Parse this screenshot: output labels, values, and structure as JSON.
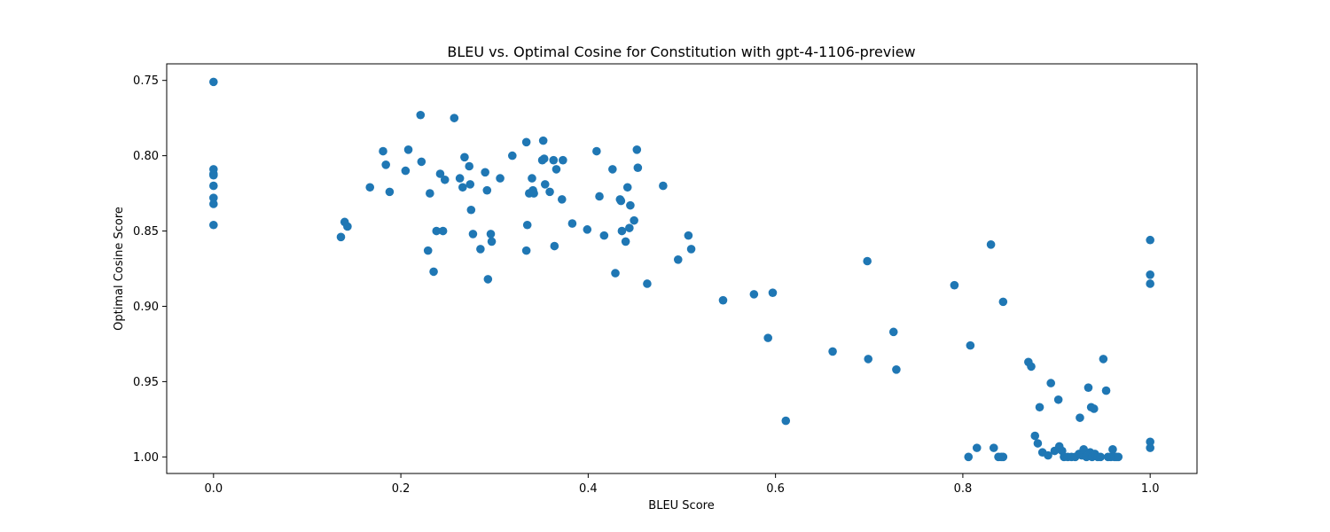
{
  "chart_data": {
    "type": "scatter",
    "title": "BLEU vs. Optimal Cosine for Constitution with gpt-4-1106-preview",
    "xlabel": "BLEU Score",
    "ylabel": "Optimal Cosine Score",
    "xlim": [
      -0.05,
      1.05
    ],
    "ylim": [
      1.011,
      0.739
    ],
    "y_inverted": true,
    "grid": false,
    "marker_color": "#1f77b4",
    "xticks": [
      0.0,
      0.2,
      0.4,
      0.6,
      0.8,
      1.0
    ],
    "xtick_labels": [
      "0.0",
      "0.2",
      "0.4",
      "0.6",
      "0.8",
      "1.0"
    ],
    "yticks": [
      0.75,
      0.8,
      0.85,
      0.9,
      0.95,
      1.0
    ],
    "ytick_labels": [
      "0.75",
      "0.80",
      "0.85",
      "0.90",
      "0.95",
      "1.00"
    ],
    "series": [
      {
        "points": [
          [
            0.0,
            0.751
          ],
          [
            0.0,
            0.809
          ],
          [
            0.0,
            0.812
          ],
          [
            0.0,
            0.813
          ],
          [
            0.0,
            0.82
          ],
          [
            0.0,
            0.828
          ],
          [
            0.0,
            0.832
          ],
          [
            0.0,
            0.846
          ],
          [
            0.136,
            0.854
          ],
          [
            0.14,
            0.844
          ],
          [
            0.143,
            0.847
          ],
          [
            0.167,
            0.821
          ],
          [
            0.181,
            0.797
          ],
          [
            0.184,
            0.806
          ],
          [
            0.188,
            0.824
          ],
          [
            0.205,
            0.81
          ],
          [
            0.208,
            0.796
          ],
          [
            0.221,
            0.773
          ],
          [
            0.222,
            0.804
          ],
          [
            0.229,
            0.863
          ],
          [
            0.231,
            0.825
          ],
          [
            0.235,
            0.877
          ],
          [
            0.238,
            0.85
          ],
          [
            0.242,
            0.812
          ],
          [
            0.245,
            0.85
          ],
          [
            0.247,
            0.816
          ],
          [
            0.257,
            0.775
          ],
          [
            0.263,
            0.815
          ],
          [
            0.266,
            0.821
          ],
          [
            0.268,
            0.801
          ],
          [
            0.273,
            0.807
          ],
          [
            0.274,
            0.819
          ],
          [
            0.275,
            0.836
          ],
          [
            0.277,
            0.852
          ],
          [
            0.285,
            0.862
          ],
          [
            0.29,
            0.811
          ],
          [
            0.292,
            0.823
          ],
          [
            0.293,
            0.882
          ],
          [
            0.296,
            0.852
          ],
          [
            0.297,
            0.857
          ],
          [
            0.306,
            0.815
          ],
          [
            0.319,
            0.8
          ],
          [
            0.334,
            0.791
          ],
          [
            0.334,
            0.863
          ],
          [
            0.335,
            0.846
          ],
          [
            0.337,
            0.825
          ],
          [
            0.34,
            0.815
          ],
          [
            0.341,
            0.823
          ],
          [
            0.342,
            0.825
          ],
          [
            0.351,
            0.803
          ],
          [
            0.352,
            0.79
          ],
          [
            0.353,
            0.802
          ],
          [
            0.354,
            0.819
          ],
          [
            0.359,
            0.824
          ],
          [
            0.363,
            0.803
          ],
          [
            0.364,
            0.86
          ],
          [
            0.366,
            0.809
          ],
          [
            0.372,
            0.829
          ],
          [
            0.373,
            0.803
          ],
          [
            0.383,
            0.845
          ],
          [
            0.399,
            0.849
          ],
          [
            0.409,
            0.797
          ],
          [
            0.412,
            0.827
          ],
          [
            0.417,
            0.853
          ],
          [
            0.426,
            0.809
          ],
          [
            0.429,
            0.878
          ],
          [
            0.434,
            0.829
          ],
          [
            0.435,
            0.83
          ],
          [
            0.436,
            0.85
          ],
          [
            0.44,
            0.857
          ],
          [
            0.442,
            0.821
          ],
          [
            0.444,
            0.848
          ],
          [
            0.445,
            0.833
          ],
          [
            0.449,
            0.843
          ],
          [
            0.452,
            0.796
          ],
          [
            0.453,
            0.808
          ],
          [
            0.463,
            0.885
          ],
          [
            0.48,
            0.82
          ],
          [
            0.496,
            0.869
          ],
          [
            0.507,
            0.853
          ],
          [
            0.51,
            0.862
          ],
          [
            0.544,
            0.896
          ],
          [
            0.577,
            0.892
          ],
          [
            0.592,
            0.921
          ],
          [
            0.597,
            0.891
          ],
          [
            0.611,
            0.976
          ],
          [
            0.661,
            0.93
          ],
          [
            0.698,
            0.87
          ],
          [
            0.699,
            0.935
          ],
          [
            0.726,
            0.917
          ],
          [
            0.729,
            0.942
          ],
          [
            0.791,
            0.886
          ],
          [
            0.806,
            1.0
          ],
          [
            0.808,
            0.926
          ],
          [
            0.815,
            0.994
          ],
          [
            0.83,
            0.859
          ],
          [
            0.833,
            0.994
          ],
          [
            0.838,
            1.0
          ],
          [
            0.841,
            1.0
          ],
          [
            0.843,
            0.897
          ],
          [
            0.843,
            1.0
          ],
          [
            0.87,
            0.937
          ],
          [
            0.873,
            0.94
          ],
          [
            0.877,
            0.986
          ],
          [
            0.88,
            0.991
          ],
          [
            0.882,
            0.967
          ],
          [
            0.885,
            0.997
          ],
          [
            0.891,
            0.999
          ],
          [
            0.894,
            0.951
          ],
          [
            0.898,
            0.996
          ],
          [
            0.902,
            0.962
          ],
          [
            0.903,
            0.993
          ],
          [
            0.906,
            0.996
          ],
          [
            0.908,
            1.0
          ],
          [
            0.912,
            1.0
          ],
          [
            0.916,
            1.0
          ],
          [
            0.92,
            1.0
          ],
          [
            0.924,
            0.998
          ],
          [
            0.925,
            0.974
          ],
          [
            0.927,
            0.999
          ],
          [
            0.929,
            0.995
          ],
          [
            0.932,
            1.0
          ],
          [
            0.934,
            0.954
          ],
          [
            0.936,
            0.997
          ],
          [
            0.937,
            0.967
          ],
          [
            0.938,
            1.0
          ],
          [
            0.94,
            0.968
          ],
          [
            0.941,
            0.998
          ],
          [
            0.944,
            1.0
          ],
          [
            0.947,
            1.0
          ],
          [
            0.95,
            0.935
          ],
          [
            0.953,
            0.956
          ],
          [
            0.955,
            1.0
          ],
          [
            0.958,
            1.0
          ],
          [
            0.96,
            0.995
          ],
          [
            0.962,
            1.0
          ],
          [
            0.964,
            1.0
          ],
          [
            0.966,
            1.0
          ],
          [
            1.0,
            0.856
          ],
          [
            1.0,
            0.879
          ],
          [
            1.0,
            0.885
          ],
          [
            1.0,
            0.99
          ],
          [
            1.0,
            0.994
          ]
        ]
      }
    ]
  }
}
